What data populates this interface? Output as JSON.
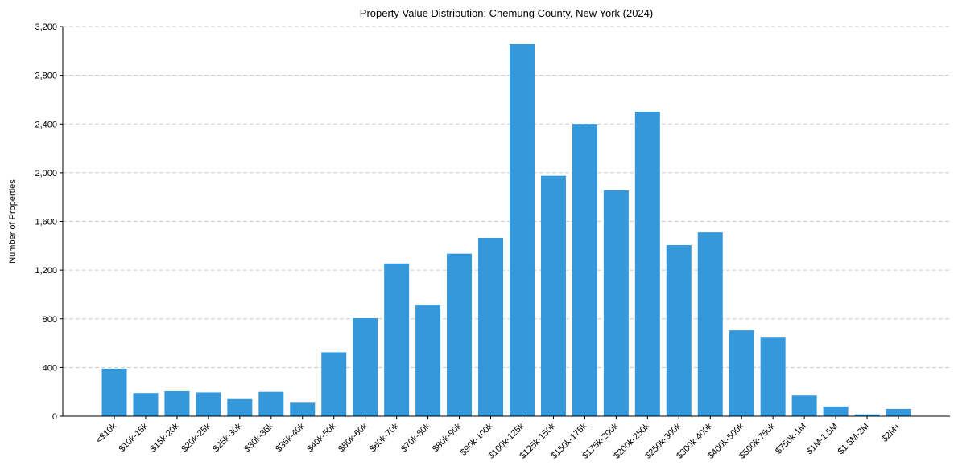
{
  "chart_data": {
    "type": "bar",
    "title": "Property Value Distribution: Chemung County, New York (2024)",
    "xlabel": "",
    "ylabel": "Number of Properties",
    "ylim": [
      0,
      3200
    ],
    "yticks": [
      0,
      400,
      800,
      1200,
      1600,
      2000,
      2400,
      2800,
      3200
    ],
    "ytick_labels": [
      "0",
      "400",
      "800",
      "1,200",
      "1,600",
      "2,000",
      "2,400",
      "2,800",
      "3,200"
    ],
    "grid": true,
    "bar_color": "#3498db",
    "categories": [
      "<$10k",
      "$10k-15k",
      "$15k-20k",
      "$20k-25k",
      "$25k-30k",
      "$30k-35k",
      "$35k-40k",
      "$40k-50k",
      "$50k-60k",
      "$60k-70k",
      "$70k-80k",
      "$80k-90k",
      "$90k-100k",
      "$100k-125k",
      "$125k-150k",
      "$150k-175k",
      "$175k-200k",
      "$200k-250k",
      "$250k-300k",
      "$300k-400k",
      "$400k-500k",
      "$500k-750k",
      "$750k-1M",
      "$1M-1.5M",
      "$1.5M-2M",
      "$2M+"
    ],
    "values": [
      390,
      190,
      205,
      195,
      140,
      200,
      110,
      525,
      805,
      1255,
      910,
      1335,
      1465,
      3055,
      1975,
      2400,
      1855,
      2500,
      1405,
      1510,
      705,
      645,
      170,
      80,
      15,
      60
    ]
  }
}
